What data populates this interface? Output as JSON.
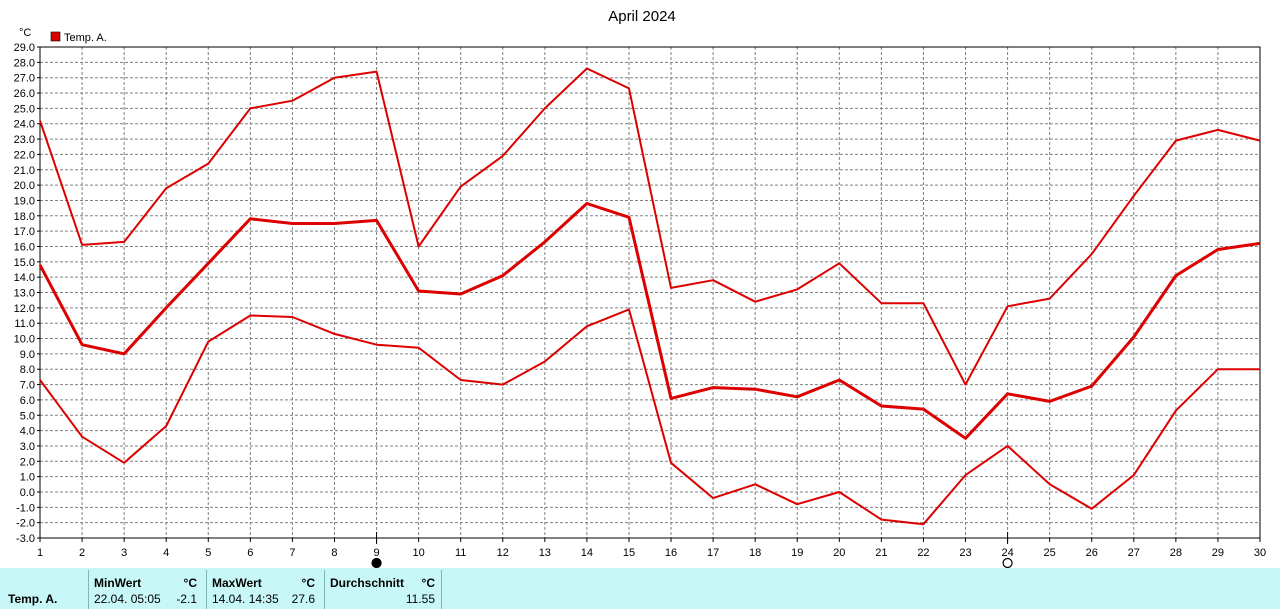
{
  "chart_data": {
    "type": "line",
    "title": "April 2024",
    "ylabel": "°C",
    "xlabel": "",
    "ylim": [
      -3.0,
      29.0
    ],
    "ystep": 1.0,
    "x": [
      1,
      2,
      3,
      4,
      5,
      6,
      7,
      8,
      9,
      10,
      11,
      12,
      13,
      14,
      15,
      16,
      17,
      18,
      19,
      20,
      21,
      22,
      23,
      24,
      25,
      26,
      27,
      28,
      29,
      30
    ],
    "xlim": [
      1,
      30
    ],
    "grid": true,
    "legend": {
      "position": "top-left",
      "entries": [
        "Temp. A."
      ]
    },
    "series_color": "#dd0000",
    "series": [
      {
        "name": "Temp. A.",
        "values": [
          24.2,
          16.1,
          16.3,
          19.8,
          21.4,
          25.0,
          25.5,
          27.0,
          27.4,
          16.0,
          19.9,
          21.9,
          25.0,
          27.6,
          26.3,
          13.3,
          13.8,
          12.4,
          13.2,
          14.9,
          12.3,
          12.3,
          7.0,
          12.1,
          12.6,
          15.5,
          19.3,
          22.9,
          23.6,
          22.9
        ]
      },
      {
        "name": "",
        "values": [
          14.8,
          9.6,
          9.0,
          12.0,
          14.9,
          17.8,
          17.5,
          17.5,
          17.7,
          13.1,
          12.9,
          14.1,
          16.3,
          18.8,
          17.9,
          6.1,
          6.8,
          6.7,
          6.2,
          7.3,
          5.6,
          5.4,
          3.5,
          6.4,
          5.9,
          6.9,
          10.1,
          14.1,
          15.8,
          16.2
        ]
      },
      {
        "name": "",
        "values": [
          7.3,
          3.6,
          1.9,
          4.3,
          9.8,
          11.5,
          11.4,
          10.3,
          9.6,
          9.4,
          7.3,
          7.0,
          8.5,
          10.8,
          11.9,
          1.9,
          -0.4,
          0.5,
          -0.8,
          0.0,
          -1.8,
          -2.1,
          1.1,
          3.0,
          0.5,
          -1.1,
          1.1,
          5.3,
          8.0,
          8.0
        ]
      }
    ],
    "moon_phases": [
      {
        "day": 9,
        "icon": "new-moon-icon"
      },
      {
        "day": 24,
        "icon": "full-moon-icon"
      }
    ]
  },
  "stats": {
    "row_label": "Temp. A.",
    "min": {
      "title": "MinWert",
      "unit": "°C",
      "datetime": "22.04.  05:05",
      "value": "-2.1"
    },
    "max": {
      "title": "MaxWert",
      "unit": "°C",
      "datetime": "14.04.  14:35",
      "value": "27.6"
    },
    "avg": {
      "title": "Durchschnitt",
      "unit": "°C",
      "value": "11.55"
    }
  }
}
